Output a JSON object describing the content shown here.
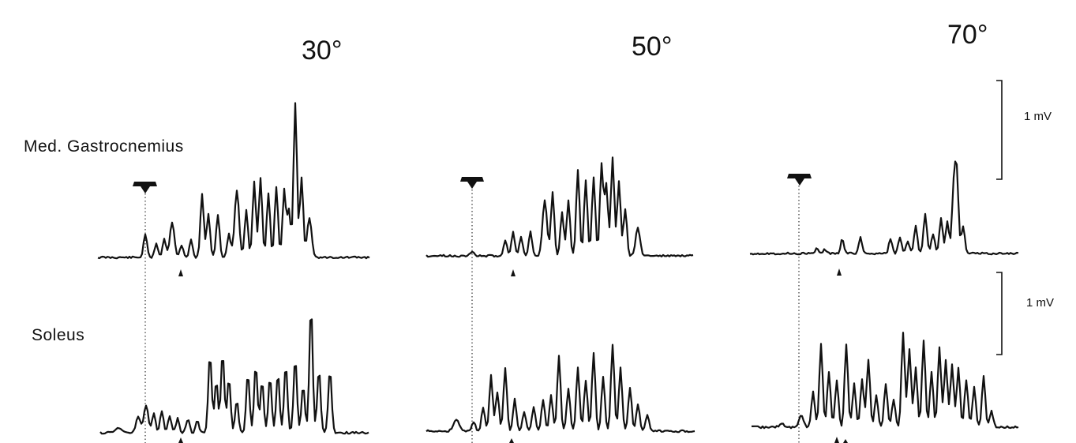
{
  "angles": [
    "30°",
    "50°",
    "70°"
  ],
  "rows": [
    "Med. Gastrocnemius",
    "Soleus"
  ],
  "scale_bar_label": "1 mV",
  "icons": {
    "stimulus": "down-arrow-icon",
    "marker": "small-triangle-icon"
  },
  "colors": {
    "trace": "#111111",
    "background": "#ffffff"
  }
}
